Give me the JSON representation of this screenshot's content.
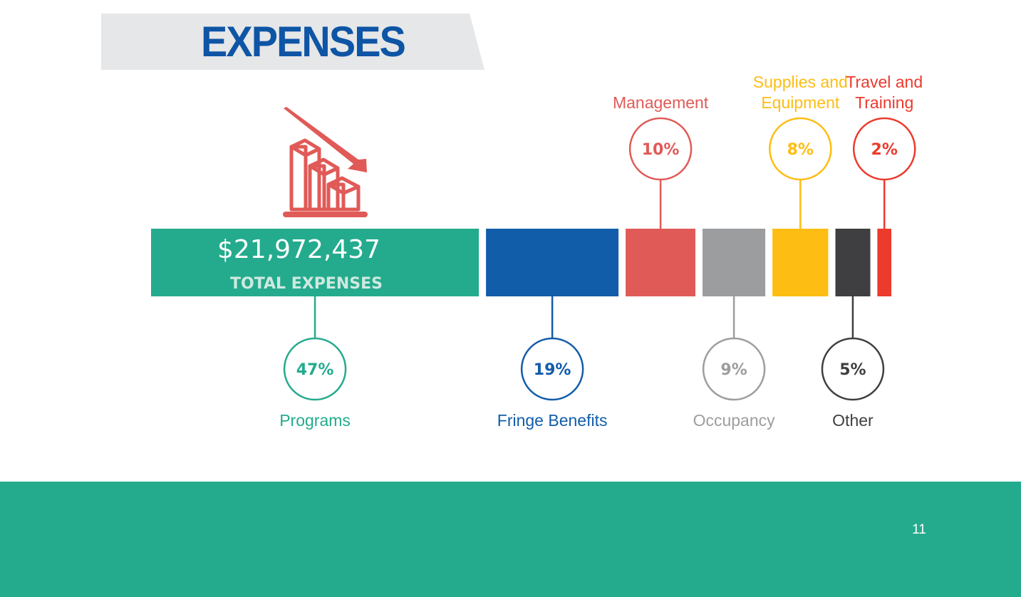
{
  "title": "EXPENSES",
  "page_number": "11",
  "colors": {
    "banner": "#e6e7e8",
    "title": "#0e55a5",
    "footer": "#24ab8d",
    "icon": "#e05a57"
  },
  "icon": "declining-bar-chart-icon",
  "chart_data": {
    "type": "bar",
    "orientation": "horizontal-stacked",
    "total": {
      "amount": "$21,972,437",
      "label": "TOTAL EXPENSES"
    },
    "unit": "%",
    "categories": [
      "Programs",
      "Fringe Benefits",
      "Management",
      "Occupancy",
      "Supplies and Equipment",
      "Other",
      "Travel and Training"
    ],
    "values": [
      47,
      19,
      10,
      9,
      8,
      5,
      2
    ],
    "labels": [
      "47%",
      "19%",
      "10%",
      "9%",
      "8%",
      "5%",
      "2%"
    ],
    "label_position": [
      "below",
      "below",
      "above",
      "below",
      "above",
      "below",
      "above"
    ],
    "colors": [
      "#24ab8d",
      "#125da9",
      "#e05a57",
      "#9c9d9f",
      "#fdbd13",
      "#3f3f41",
      "#ec3a2c"
    ]
  }
}
